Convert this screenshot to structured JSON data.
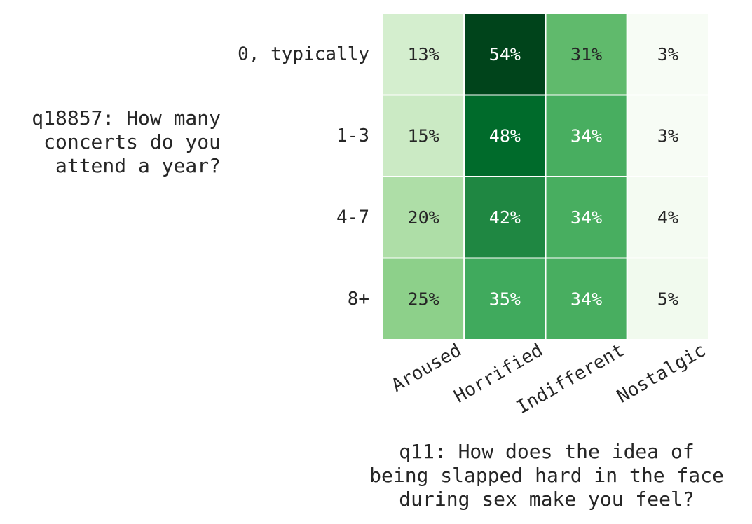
{
  "chart_data": {
    "type": "heatmap",
    "title": "",
    "xlabel": "q11: How does the idea of\nbeing slapped hard in the face\nduring sex make you feel?",
    "ylabel": "q18857: How many\nconcerts do you\nattend a year?",
    "columns": [
      "Aroused",
      "Horrified",
      "Indifferent",
      "Nostalgic"
    ],
    "rows": [
      "0, typically",
      "1-3",
      "4-7",
      "8+"
    ],
    "values": [
      [
        13,
        54,
        31,
        3
      ],
      [
        15,
        48,
        34,
        3
      ],
      [
        20,
        42,
        34,
        4
      ],
      [
        25,
        35,
        34,
        5
      ]
    ],
    "cell_labels": [
      [
        "13%",
        "54%",
        "31%",
        "3%"
      ],
      [
        "15%",
        "48%",
        "34%",
        "3%"
      ],
      [
        "20%",
        "42%",
        "34%",
        "4%"
      ],
      [
        "25%",
        "35%",
        "34%",
        "5%"
      ]
    ],
    "colormap": "Greens",
    "vmin": 3,
    "vmax": 54,
    "colors": {
      "low": "#f7fcf5",
      "high": "#00441b",
      "dark_text": "#262626",
      "light_text": "#ffffff"
    }
  }
}
